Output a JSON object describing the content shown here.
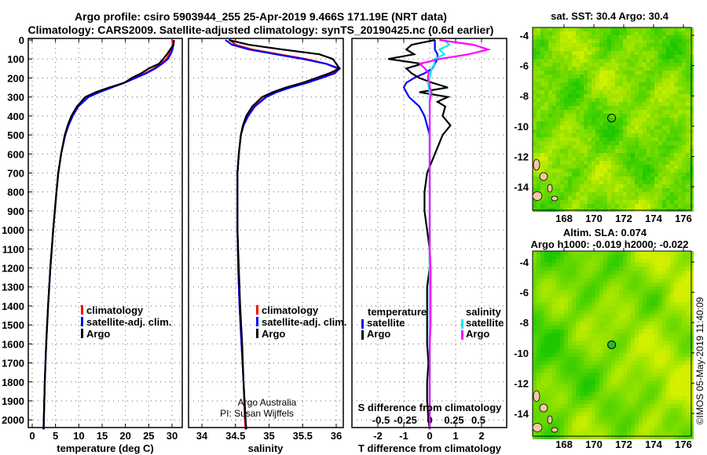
{
  "title_line1": "Argo profile: csiro 5903944_255 25-Apr-2019 9.466S 171.19E (NRT data)",
  "title_line2": "Climatology: CARS2009. Satellite-adjusted climatology: synTS_20190425.nc (0.6d earlier)",
  "colors": {
    "climatology": "#ff0000",
    "satellite": "#0000ff",
    "argo": "#000000",
    "sal_satellite": "#00eeee",
    "sal_argo": "#ff00ff"
  },
  "chart_data": [
    {
      "type": "line",
      "name": "temperature-profile",
      "xlabel": "temperature (deg C)",
      "ylabel": "depth",
      "xlim": [
        -2,
        31
      ],
      "ylim": [
        2050,
        0
      ],
      "xticks": [
        0,
        5,
        10,
        15,
        20,
        25,
        30
      ],
      "yticks": [
        0,
        100,
        200,
        300,
        400,
        500,
        600,
        700,
        800,
        900,
        1000,
        1100,
        1200,
        1300,
        1400,
        1500,
        1600,
        1700,
        1800,
        1900,
        2000
      ],
      "legend": [
        "climatology",
        "satellite-adj. clim.",
        "Argo"
      ],
      "depth": [
        0,
        25,
        50,
        75,
        100,
        125,
        150,
        175,
        200,
        225,
        250,
        275,
        300,
        350,
        400,
        450,
        500,
        600,
        700,
        800,
        1000,
        1200,
        1400,
        1600,
        1800,
        2000,
        2050
      ],
      "series": [
        {
          "name": "climatology",
          "values": [
            30.2,
            30.1,
            29.9,
            29.4,
            28.8,
            27.6,
            26.1,
            24.2,
            22.0,
            19.6,
            17.0,
            14.3,
            12.0,
            9.8,
            8.6,
            7.7,
            7.0,
            6.2,
            5.6,
            5.2,
            4.5,
            3.9,
            3.4,
            3.0,
            2.7,
            2.5,
            2.4
          ]
        },
        {
          "name": "satellite-adj. clim.",
          "values": [
            30.4,
            30.3,
            30.1,
            29.7,
            29.1,
            27.9,
            26.4,
            24.5,
            22.2,
            19.8,
            17.1,
            14.4,
            12.1,
            9.9,
            8.7,
            7.8,
            7.1,
            6.2,
            5.6,
            5.2,
            4.5,
            3.9,
            3.4,
            3.0,
            2.7,
            2.5,
            2.4
          ]
        },
        {
          "name": "Argo",
          "values": [
            30.4,
            30.3,
            29.6,
            28.9,
            28.1,
            27.2,
            25.0,
            23.4,
            21.3,
            19.8,
            16.5,
            13.6,
            11.4,
            9.6,
            8.4,
            7.6,
            7.0,
            6.2,
            5.6,
            5.2,
            4.5,
            3.9,
            3.4,
            3.0,
            2.7,
            2.5,
            2.5
          ]
        }
      ]
    },
    {
      "type": "line",
      "name": "salinity-profile",
      "xlabel": "salinity",
      "xlim": [
        33.7,
        36.15
      ],
      "ylim": [
        2050,
        0
      ],
      "xticks": [
        34,
        34.5,
        35,
        35.5,
        36
      ],
      "xtick_labels": [
        "34",
        "34.5",
        "35",
        "35.5",
        "36"
      ],
      "legend": [
        "climatology",
        "satellite-adj. clim.",
        "Argo"
      ],
      "credit_line1": "Argo Australia",
      "credit_line2": "PI: Susan Wijffels",
      "depth": [
        0,
        25,
        50,
        75,
        100,
        125,
        150,
        175,
        200,
        225,
        250,
        275,
        300,
        350,
        400,
        450,
        500,
        600,
        700,
        800,
        1000,
        1200,
        1400,
        1600,
        1800,
        2000,
        2050
      ],
      "series": [
        {
          "name": "climatology",
          "values": [
            34.42,
            34.5,
            34.75,
            35.15,
            35.55,
            35.85,
            36.02,
            35.95,
            35.75,
            35.55,
            35.3,
            35.1,
            34.95,
            34.78,
            34.68,
            34.62,
            34.58,
            34.55,
            34.53,
            34.53,
            34.53,
            34.54,
            34.56,
            34.59,
            34.62,
            34.64,
            34.65
          ]
        },
        {
          "name": "satellite-adj. clim.",
          "values": [
            34.35,
            34.45,
            34.7,
            35.1,
            35.5,
            35.85,
            36.05,
            35.98,
            35.78,
            35.57,
            35.32,
            35.11,
            34.96,
            34.79,
            34.69,
            34.62,
            34.58,
            34.55,
            34.53,
            34.53,
            34.53,
            34.54,
            34.56,
            34.59,
            34.62,
            34.65,
            34.66
          ]
        },
        {
          "name": "Argo",
          "values": [
            34.4,
            34.7,
            35.2,
            35.75,
            35.95,
            36.0,
            36.05,
            35.9,
            35.7,
            35.5,
            35.25,
            35.05,
            34.9,
            34.75,
            34.66,
            34.61,
            34.58,
            34.55,
            34.53,
            34.53,
            34.53,
            34.55,
            34.57,
            34.6,
            34.62,
            34.65,
            34.66
          ]
        }
      ]
    },
    {
      "type": "line",
      "name": "difference-profile",
      "xlabel": "T difference from climatology",
      "xlabel_top": "S difference from climatology",
      "xlim": [
        -3,
        3
      ],
      "ylim": [
        2050,
        0
      ],
      "xticks": [
        -2,
        -1,
        0,
        1,
        2
      ],
      "s_xticks": [
        -0.5,
        -0.25,
        0,
        0.25,
        0.5
      ],
      "s_xtick_labels": [
        "-0.5",
        "-0.25",
        "0",
        "0.25",
        "0.5"
      ],
      "legend_temperature_title": "temperature",
      "legend_salinity_title": "salinity",
      "legend_labels": [
        "satellite",
        "Argo",
        "satellite",
        "Argo"
      ],
      "depth": [
        0,
        25,
        50,
        75,
        100,
        125,
        150,
        175,
        200,
        225,
        250,
        275,
        300,
        325,
        350,
        400,
        450,
        500,
        600,
        700,
        800,
        900,
        1000,
        1100,
        1200,
        1300,
        1400,
        1500,
        1600,
        1700,
        1800,
        1900,
        2000,
        2050
      ],
      "series": [
        {
          "name": "T satellite",
          "quantity": "T",
          "values": [
            0.2,
            0.2,
            0.2,
            0.3,
            0.3,
            0.2,
            0.1,
            -0.2,
            -0.6,
            -0.9,
            -1.0,
            -0.9,
            -0.8,
            -0.6,
            -0.4,
            -0.2,
            -0.1,
            0,
            0,
            0,
            0,
            0,
            0,
            0,
            0,
            0,
            0,
            0,
            0,
            0,
            0,
            0,
            0,
            0
          ]
        },
        {
          "name": "T Argo",
          "quantity": "T",
          "values": [
            0.2,
            -0.7,
            -0.9,
            -0.6,
            -1.6,
            -0.3,
            -0.9,
            -0.7,
            -0.4,
            0.1,
            0.7,
            -0.4,
            0.7,
            0.3,
            0.6,
            0.5,
            0.8,
            0.5,
            0.2,
            -0.1,
            -0.2,
            -0.2,
            -0.1,
            0,
            0,
            -0.1,
            -0.1,
            -0.1,
            -0.1,
            -0.05,
            -0.1,
            -0.1,
            -0.05,
            0
          ]
        },
        {
          "name": "S satellite",
          "quantity": "S",
          "values": [
            0.15,
            0.2,
            0.1,
            0.15,
            0.05,
            0.05,
            0.02,
            0.01,
            0,
            -0.02,
            -0.01,
            0,
            0,
            0,
            0,
            0,
            0,
            0,
            0,
            0,
            0,
            0,
            0,
            0,
            0,
            0,
            0,
            0,
            0,
            0,
            0,
            0,
            0,
            0
          ]
        },
        {
          "name": "S Argo",
          "quantity": "S",
          "values": [
            0.1,
            0.45,
            0.6,
            0.4,
            0.1,
            -0.1,
            -0.05,
            -0.01,
            -0.02,
            0,
            0,
            0.02,
            0.01,
            0,
            0,
            0,
            0,
            0,
            0,
            0,
            0,
            0,
            0,
            0,
            0.01,
            0.01,
            0.01,
            0.01,
            0,
            0,
            0,
            0,
            0,
            0
          ]
        }
      ]
    }
  ],
  "maps": [
    {
      "name": "sst-map",
      "title": "sat. SST: 30.4 Argo: 30.4",
      "lon_ticks": [
        168,
        170,
        172,
        174,
        176
      ],
      "lat_ticks": [
        -4,
        -6,
        -8,
        -10,
        -12,
        -14
      ],
      "lon_range": [
        165.9,
        176.5
      ],
      "lat_range": [
        -3.5,
        -15.6
      ]
    },
    {
      "name": "sla-map",
      "title_line1": "Altim. SLA: 0.074",
      "title_line2": "Argo h1000: -0.019 h2000: -0.022",
      "lon_ticks": [
        168,
        170,
        172,
        174,
        176
      ],
      "lat_ticks": [
        -4,
        -6,
        -8,
        -10,
        -12,
        -14
      ],
      "lon_range": [
        165.9,
        176.5
      ],
      "lat_range": [
        -3.5,
        -15.6
      ]
    }
  ],
  "argo_position": {
    "lon": 171.19,
    "lat": -9.466
  },
  "footer_stamp": "©IMOS 05-May-2019 11:40:09"
}
